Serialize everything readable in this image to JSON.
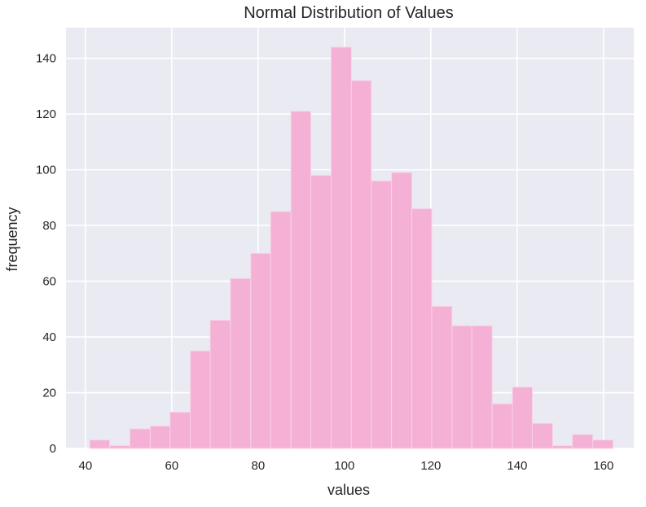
{
  "chart_data": {
    "type": "bar",
    "title": "Normal Distribution of Values",
    "xlabel": "values",
    "ylabel": "frequency",
    "xlim": [
      35.5,
      167
    ],
    "ylim": [
      0,
      151
    ],
    "xticks": [
      40,
      60,
      80,
      100,
      120,
      140,
      160
    ],
    "yticks": [
      0,
      20,
      40,
      60,
      80,
      100,
      120,
      140
    ],
    "grid": true,
    "colors": {
      "background": "#eaeaf2",
      "grid": "#ffffff",
      "bar": "#f4b0d5",
      "bar_edge": "#f8d2e6"
    },
    "bins": [
      {
        "start": 41.0,
        "end": 45.6,
        "count": 3
      },
      {
        "start": 45.6,
        "end": 50.3,
        "count": 1
      },
      {
        "start": 50.3,
        "end": 55.0,
        "count": 7
      },
      {
        "start": 55.0,
        "end": 59.6,
        "count": 8
      },
      {
        "start": 59.6,
        "end": 64.3,
        "count": 13
      },
      {
        "start": 64.3,
        "end": 68.9,
        "count": 35
      },
      {
        "start": 68.9,
        "end": 73.6,
        "count": 46
      },
      {
        "start": 73.6,
        "end": 78.3,
        "count": 61
      },
      {
        "start": 78.3,
        "end": 82.9,
        "count": 70
      },
      {
        "start": 82.9,
        "end": 87.6,
        "count": 85
      },
      {
        "start": 87.6,
        "end": 92.2,
        "count": 121
      },
      {
        "start": 92.2,
        "end": 96.9,
        "count": 98
      },
      {
        "start": 96.9,
        "end": 101.6,
        "count": 144
      },
      {
        "start": 101.6,
        "end": 106.2,
        "count": 132
      },
      {
        "start": 106.2,
        "end": 110.9,
        "count": 96
      },
      {
        "start": 110.9,
        "end": 115.6,
        "count": 99
      },
      {
        "start": 115.6,
        "end": 120.2,
        "count": 86
      },
      {
        "start": 120.2,
        "end": 124.9,
        "count": 51
      },
      {
        "start": 124.9,
        "end": 129.5,
        "count": 44
      },
      {
        "start": 129.5,
        "end": 134.2,
        "count": 44
      },
      {
        "start": 134.2,
        "end": 138.9,
        "count": 16
      },
      {
        "start": 138.9,
        "end": 143.5,
        "count": 22
      },
      {
        "start": 143.5,
        "end": 148.2,
        "count": 9
      },
      {
        "start": 148.2,
        "end": 152.8,
        "count": 1
      },
      {
        "start": 152.8,
        "end": 157.5,
        "count": 5
      },
      {
        "start": 157.5,
        "end": 162.2,
        "count": 3
      }
    ]
  }
}
